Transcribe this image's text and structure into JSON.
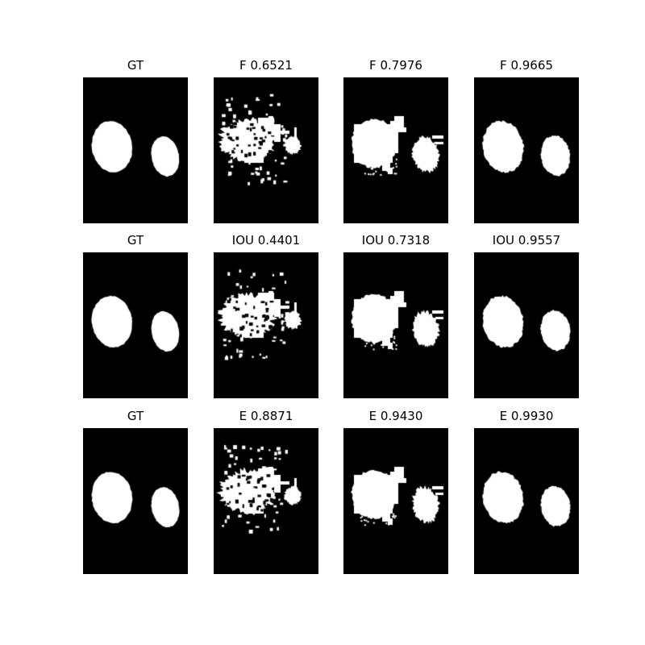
{
  "colors": {
    "background": "#ffffff",
    "mask_foreground": "#ffffff",
    "mask_background": "#000000"
  },
  "rows": [
    {
      "panels": [
        {
          "title": "GT",
          "kind": "gt",
          "seed": 11
        },
        {
          "title": "F 0.6521",
          "kind": "poor",
          "seed": 21
        },
        {
          "title": "F 0.7976",
          "kind": "fair",
          "seed": 31
        },
        {
          "title": "F 0.9665",
          "kind": "good",
          "seed": 41
        }
      ]
    },
    {
      "panels": [
        {
          "title": "GT",
          "kind": "gt",
          "seed": 12
        },
        {
          "title": "IOU 0.4401",
          "kind": "poor",
          "seed": 22
        },
        {
          "title": "IOU 0.7318",
          "kind": "fair",
          "seed": 32
        },
        {
          "title": "IOU 0.9557",
          "kind": "good",
          "seed": 42
        }
      ]
    },
    {
      "panels": [
        {
          "title": "GT",
          "kind": "gt",
          "seed": 13
        },
        {
          "title": "E 0.8871",
          "kind": "poor",
          "seed": 23
        },
        {
          "title": "E 0.9430",
          "kind": "fair",
          "seed": 33
        },
        {
          "title": "E 0.9930",
          "kind": "good",
          "seed": 43
        }
      ]
    }
  ]
}
